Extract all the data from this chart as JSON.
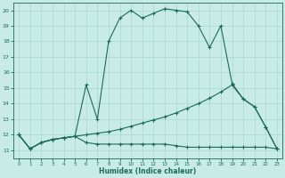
{
  "xlabel": "Humidex (Indice chaleur)",
  "xlim": [
    -0.5,
    23.5
  ],
  "ylim": [
    10.5,
    20.5
  ],
  "yticks": [
    11,
    12,
    13,
    14,
    15,
    16,
    17,
    18,
    19,
    20
  ],
  "xticks": [
    0,
    1,
    2,
    3,
    4,
    5,
    6,
    7,
    8,
    9,
    10,
    11,
    12,
    13,
    14,
    15,
    16,
    17,
    18,
    19,
    20,
    21,
    22,
    23
  ],
  "bg_color": "#c8ebe6",
  "line_color": "#1a6b5a",
  "grid_color": "#a8d8d0",
  "curve1_x": [
    0,
    1,
    2,
    3,
    4,
    5,
    6,
    7,
    8,
    9,
    10,
    11,
    12,
    13,
    14,
    15,
    16,
    17,
    18,
    19,
    20,
    21,
    22,
    23
  ],
  "curve1_y": [
    12.0,
    11.1,
    11.5,
    11.7,
    11.8,
    11.9,
    15.2,
    13.0,
    18.0,
    19.5,
    20.0,
    19.5,
    19.8,
    20.1,
    20.0,
    19.9,
    19.0,
    17.6,
    19.0,
    15.3,
    14.3,
    13.8,
    12.5,
    11.1
  ],
  "curve2_x": [
    0,
    1,
    2,
    3,
    4,
    5,
    6,
    7,
    8,
    9,
    10,
    11,
    12,
    13,
    14,
    15,
    16,
    17,
    18,
    19,
    20,
    21,
    22,
    23
  ],
  "curve2_y": [
    12.0,
    11.1,
    11.5,
    11.7,
    11.8,
    11.9,
    12.0,
    12.1,
    12.2,
    12.35,
    12.55,
    12.75,
    12.95,
    13.15,
    13.4,
    13.7,
    14.0,
    14.35,
    14.75,
    15.2,
    14.3,
    13.8,
    12.5,
    11.1
  ],
  "curve3_x": [
    0,
    1,
    2,
    3,
    4,
    5,
    6,
    7,
    8,
    9,
    10,
    11,
    12,
    13,
    14,
    15,
    16,
    17,
    18,
    19,
    20,
    21,
    22,
    23
  ],
  "curve3_y": [
    12.0,
    11.1,
    11.5,
    11.7,
    11.8,
    11.9,
    11.5,
    11.4,
    11.4,
    11.4,
    11.4,
    11.4,
    11.4,
    11.4,
    11.3,
    11.2,
    11.2,
    11.2,
    11.2,
    11.2,
    11.2,
    11.2,
    11.2,
    11.1
  ]
}
